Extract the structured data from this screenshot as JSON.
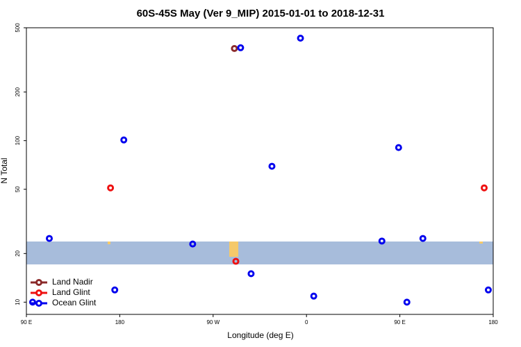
{
  "chart_data": {
    "type": "scatter",
    "title": "60S-45S May (Ver 9_MIP)   2015-01-01 to 2018-12-31",
    "xlabel": "Longitude (deg E)",
    "ylabel": "N Total",
    "yscale": "log",
    "xlim": [
      90,
      540
    ],
    "ylim": [
      8.4,
      500
    ],
    "xticks": [
      {
        "value": 90,
        "label": "90 E"
      },
      {
        "value": 180,
        "label": "180"
      },
      {
        "value": 270,
        "label": "90 W"
      },
      {
        "value": 360,
        "label": "0"
      },
      {
        "value": 450,
        "label": "90 E"
      },
      {
        "value": 540,
        "label": "180"
      }
    ],
    "yticks": [
      10,
      20,
      50,
      100,
      200,
      500
    ],
    "legend": "lower left",
    "series": [
      {
        "name": "Land Nadir",
        "color": "#8b2a2a",
        "x": [
          290.5
        ],
        "values": [
          372
        ]
      },
      {
        "name": "Land Glint",
        "color": "#ee1111",
        "x": [
          171.1,
          531.3,
          291.9
        ],
        "values": [
          51,
          51,
          17.9
        ]
      },
      {
        "name": "Ocean Glint",
        "color": "#0000ee",
        "x": [
          296.5,
          354.2,
          183.9,
          326.7,
          448.8,
          112.1,
          250.3,
          432.7,
          472.2,
          306.6,
          175.2,
          367.0,
          456.8,
          535.3,
          96.0
        ],
        "values": [
          376,
          431,
          101,
          69.4,
          90.6,
          24.8,
          22.9,
          23.9,
          24.8,
          15.0,
          11.9,
          10.9,
          10,
          11.9,
          10
        ]
      }
    ]
  }
}
